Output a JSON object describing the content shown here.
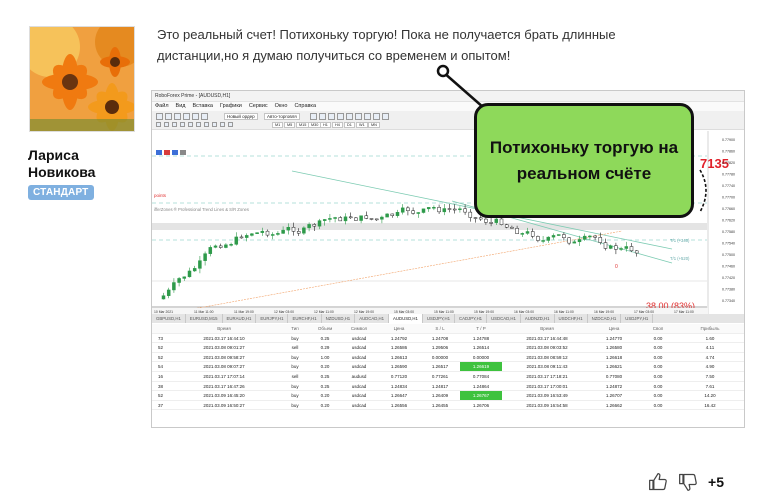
{
  "author": {
    "name": "Лариса Новикова",
    "badge": "СТАНДАРТ"
  },
  "post": {
    "text": "Это реальный счет! Потихоньку торгую! Пока не получается брать длинные дистанции,но я думаю получиться со временем и опытом!"
  },
  "callout": {
    "text": "Потихоньку торгую на реальном счёте"
  },
  "screenshot": {
    "window_title": "RoboForex Prime - [AUDUSD,H1]",
    "menu": [
      "Файл",
      "Вид",
      "Вставка",
      "Графики",
      "Сервис",
      "Окно",
      "Справка"
    ],
    "toolbar": {
      "new_order": "Новый ордер",
      "autotrading": "Авто-торговля"
    },
    "timeframes": [
      "M1",
      "M5",
      "M15",
      "M30",
      "H1",
      "H4",
      "D1",
      "W1",
      "MN"
    ],
    "chart": {
      "price_big": "7135",
      "percent_label": "38.00 (83%)",
      "zero_label": "0",
      "points_label": "points",
      "indicator_label": "ifferZones ® Professional Trend Lines & S/R Zones",
      "tp_labels": [
        "T/1 (+340)",
        "T/1 (+520)"
      ],
      "price_axis": [
        "0.77900",
        "0.77860",
        "0.77820",
        "0.77780",
        "0.77740",
        "0.77700",
        "0.77660",
        "0.77620",
        "0.77580",
        "0.77540",
        "0.77500",
        "0.77460",
        "0.77420",
        "0.77380",
        "0.77340"
      ],
      "time_axis": [
        "10 Mar 2021",
        "11 Mar 11:00",
        "11 Mar 19:00",
        "12 Mar 03:00",
        "12 Mar 11:00",
        "12 Mar 19:00",
        "15 Mar 03:00",
        "15 Mar 11:00",
        "15 Mar 19:00",
        "16 Mar 03:00",
        "16 Mar 11:00",
        "16 Mar 19:00",
        "17 Mar 03:00",
        "17 Mar 11:00"
      ]
    },
    "symbol_tabs": [
      "GBPUSD,H1",
      "EURUSD,M15",
      "EURAUD,H1",
      "EURJPY,H1",
      "EURCHF,H1",
      "NZDUSD,H1",
      "AUDCAD,H1",
      "AUDUSD,H1",
      "USDJPY,H1",
      "CADJPY,H1",
      "USDCAD,H1",
      "AUDNZD,H1",
      "USDCHF,H1",
      "NZDCAD,H1",
      "USDJPY,H1"
    ],
    "active_tab": 7,
    "trades": {
      "headers": [
        "",
        "Время",
        "Тип",
        "Объем",
        "Символ",
        "Цена",
        "S / L",
        "T / P",
        "Время",
        "Цена",
        "Своп",
        "Прибыль"
      ],
      "rows": [
        [
          "73",
          "2021.03.17 16:44:10",
          "buy",
          "0.25",
          "usdcad",
          "1.24792",
          "1.24708",
          "1.24788",
          "2021.03.17 16:44:48",
          "1.24770",
          "0.00",
          "1.60"
        ],
        [
          "52",
          "2021.03.08 09:01:27",
          "sell",
          "0.29",
          "usdcad",
          "1.26586",
          "1.29506",
          "1.26514",
          "2021.03.08 09:03:52",
          "1.26580",
          "0.00",
          "4.11"
        ],
        [
          "52",
          "2021.03.08 09:58:27",
          "buy",
          "1.00",
          "usdcad",
          "1.26613",
          "0.00000",
          "0.00000",
          "2021.03.08 08:59:12",
          "1.26618",
          "0.00",
          "4.74"
        ],
        [
          "54",
          "2021.03.08 09:07:27",
          "buy",
          "0.20",
          "usdcad",
          "1.26590",
          "1.26517",
          "1.26619",
          "2021.03.08 09:11:43",
          "1.26621",
          "0.00",
          "4.90"
        ],
        [
          "16",
          "2021.03.17 17:07:14",
          "sell",
          "0.25",
          "audusd",
          "0.77120",
          "0.77261",
          "0.77084",
          "2021.03.17 17:18:21",
          "0.77080",
          "0.00",
          "7.50"
        ],
        [
          "38",
          "2021.03.17 16:47:26",
          "buy",
          "0.25",
          "usdcad",
          "1.24834",
          "1.24817",
          "1.24864",
          "2021.03.17 17:00:01",
          "1.24872",
          "0.00",
          "7.61"
        ],
        [
          "52",
          "2021.03.09 16:45:20",
          "buy",
          "0.20",
          "usdcad",
          "1.26647",
          "1.26409",
          "1.26767",
          "2021.03.09 16:53:49",
          "1.26707",
          "0.00",
          "14.20"
        ],
        [
          "37",
          "2021.03.09 16:50:27",
          "buy",
          "0.20",
          "usdcad",
          "1.26556",
          "1.26455",
          "1.26706",
          "2021.03.09 16:54:58",
          "1.26662",
          "0.00",
          "16.42"
        ]
      ],
      "tp_hit_rows": [
        3,
        6
      ]
    }
  },
  "footer": {
    "like_icon": "thumbs-up-icon",
    "dislike_icon": "thumbs-down-icon",
    "score": "+5"
  },
  "colors": {
    "callout_bg": "#8ed95a",
    "badge_bg": "#7fb0e0",
    "bull_candle": "#2e9a4a",
    "bear_candle": "#222222",
    "tp_hit": "#3ec23e",
    "price_red": "#e0202a"
  }
}
